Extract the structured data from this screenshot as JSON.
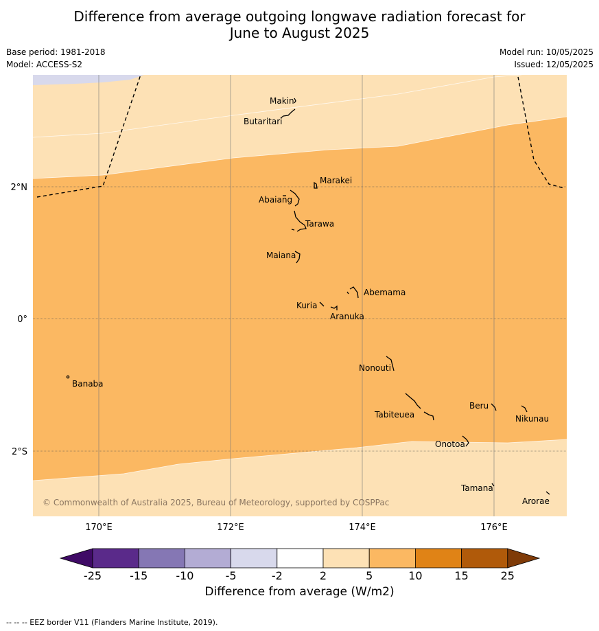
{
  "title": {
    "line1": "Difference from average outgoing longwave radiation forecast for",
    "line2": "June to August 2025"
  },
  "meta": {
    "base_period": "Base period: 1981-2018",
    "model": "Model: ACCESS-S2",
    "model_run": "Model run: 10/05/2025",
    "issued": "Issued: 12/05/2025"
  },
  "map": {
    "lon_ticks": [
      "170°E",
      "172°E",
      "174°E",
      "176°E"
    ],
    "lat_ticks": [
      "2°N",
      "0°",
      "2°S"
    ],
    "copyright": "© Commonwealth of Australia 2025, Bureau of Meteorology, supported by COSPPac",
    "islands": [
      "Makin",
      "Butaritari",
      "Marakei",
      "Abaiang",
      "Tarawa",
      "Maiana",
      "Abemama",
      "Kuria",
      "Aranuka",
      "Nonouti",
      "Banaba",
      "Beru",
      "Nikunau",
      "Tabiteuea",
      "Onotoa",
      "Tamana",
      "Arorae"
    ],
    "zone_colors": {
      "pale_orange": "#fde1b5",
      "light_orange": "#fbb862",
      "pale_purple": "#d8d9ec"
    }
  },
  "colorbar": {
    "ticks": [
      "-25",
      "-15",
      "-10",
      "-5",
      "-2",
      "2",
      "5",
      "10",
      "15",
      "25"
    ],
    "colors": [
      "#3f0a66",
      "#5a2a8a",
      "#8577b4",
      "#b3acd4",
      "#d8d9ec",
      "#ffffff",
      "#fde1b5",
      "#fbb862",
      "#e08316",
      "#b05a0a",
      "#7f3b08"
    ],
    "title": "Difference from average (W/m2)"
  },
  "footer": "-- -- -- EEZ border V11 (Flanders Marine Institute, 2019)."
}
